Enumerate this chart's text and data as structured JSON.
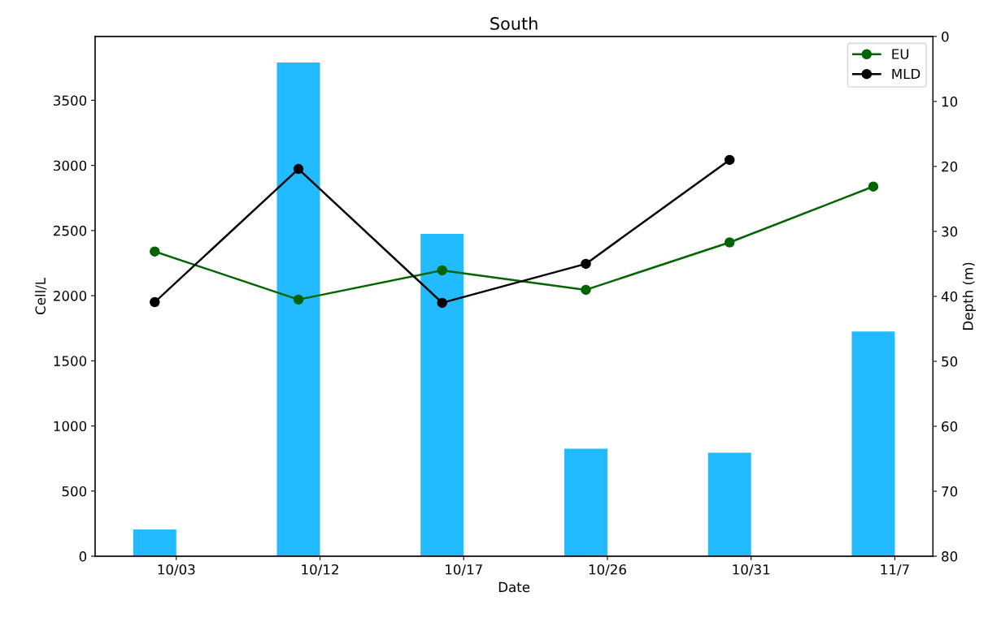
{
  "chart_data": {
    "type": "bar",
    "title": "South",
    "xlabel": "Date",
    "ylabel": "Cell/L",
    "y2label": "Depth (m)",
    "categories": [
      "10/03",
      "10/12",
      "10/17",
      "10/26",
      "10/31",
      "11/7"
    ],
    "series": [
      {
        "color": "#22bbff",
        "values": [
          205,
          3790,
          2475,
          825,
          795,
          1725
        ]
      },
      {
        "type": "line",
        "name": "EU",
        "color": "#006400",
        "axis": "y2",
        "values": [
          33.1,
          40.5,
          36.0,
          39.0,
          31.7,
          23.1
        ]
      },
      {
        "type": "line",
        "name": "MLD",
        "color": "#000000",
        "axis": "y2",
        "values": [
          40.9,
          20.4,
          41.0,
          35.0,
          19.0,
          null
        ]
      }
    ],
    "ylim": [
      0,
      3990
    ],
    "yticks": [
      0,
      500,
      1000,
      1500,
      2000,
      2500,
      3000,
      3500
    ],
    "y2lim": [
      80,
      0
    ],
    "y2ticks": [
      0,
      10,
      20,
      30,
      40,
      50,
      60,
      70,
      80
    ],
    "marker": "circle",
    "line_style": "solid",
    "legend": "top right",
    "grid": false
  }
}
